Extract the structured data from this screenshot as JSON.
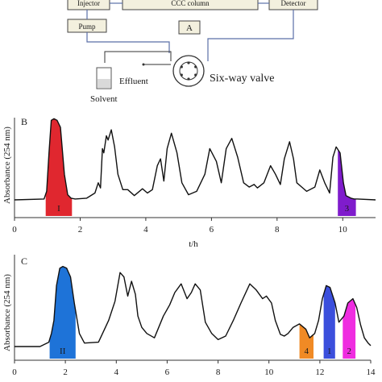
{
  "schematic": {
    "injector_label": "Injector",
    "column_label": "CCC column",
    "detector_label": "Detector",
    "pump_label": "Pump",
    "panel_label": "A",
    "effluent_label": "Effluent",
    "solvent_label": "Solvent",
    "valve_label": "Six-way valve"
  },
  "chart_data": [
    {
      "type": "line",
      "panel": "B",
      "xlabel": "t/h",
      "ylabel": "Absorbance (254 nm)",
      "xlim": [
        0,
        11
      ],
      "ylim": [
        0,
        1
      ],
      "xticks": [
        "0",
        "2",
        "4",
        "6",
        "8",
        "10"
      ],
      "series": [
        {
          "x": [
            0.0,
            0.9,
            0.98,
            1.05,
            1.12,
            1.2,
            1.3,
            1.4,
            1.52,
            1.62,
            1.72,
            1.85,
            2.2,
            2.45,
            2.55,
            2.62,
            2.68,
            2.72,
            2.8,
            2.85,
            2.95,
            3.05,
            3.15,
            3.3,
            3.45,
            3.65,
            3.9,
            4.05,
            4.2,
            4.35,
            4.45,
            4.55,
            4.65,
            4.78,
            4.95,
            5.1,
            5.3,
            5.55,
            5.8,
            5.95,
            6.15,
            6.3,
            6.45,
            6.62,
            6.8,
            6.98,
            7.15,
            7.3,
            7.4,
            7.6,
            7.8,
            7.95,
            8.1,
            8.22,
            8.38,
            8.5,
            8.6,
            8.75,
            8.9,
            9.15,
            9.3,
            9.45,
            9.6,
            9.7,
            9.8,
            9.92,
            10.02,
            10.1,
            10.25,
            10.35,
            10.45,
            11.0
          ],
          "y": [
            0.0,
            0.01,
            0.1,
            0.55,
            0.93,
            0.95,
            0.93,
            0.85,
            0.3,
            0.06,
            0.02,
            0.01,
            0.02,
            0.08,
            0.2,
            0.14,
            0.6,
            0.55,
            0.75,
            0.7,
            0.82,
            0.62,
            0.3,
            0.12,
            0.12,
            0.05,
            0.13,
            0.08,
            0.12,
            0.4,
            0.48,
            0.22,
            0.6,
            0.78,
            0.55,
            0.2,
            0.06,
            0.1,
            0.3,
            0.6,
            0.45,
            0.2,
            0.6,
            0.72,
            0.5,
            0.2,
            0.15,
            0.18,
            0.14,
            0.2,
            0.4,
            0.3,
            0.18,
            0.48,
            0.68,
            0.48,
            0.2,
            0.15,
            0.1,
            0.15,
            0.35,
            0.2,
            0.08,
            0.5,
            0.62,
            0.55,
            0.2,
            0.05,
            0.02,
            0.01,
            0.01,
            0.0
          ]
        }
      ],
      "fractions": [
        {
          "label": "I",
          "x_start": 0.95,
          "x_end": 1.75,
          "color": "#e0272f"
        },
        {
          "label": "3",
          "x_start": 9.85,
          "x_end": 10.4,
          "color": "#7f1ccc"
        }
      ]
    },
    {
      "type": "line",
      "panel": "C",
      "ylabel": "Absorbance (254 nm)",
      "xlim": [
        0,
        14
      ],
      "ylim": [
        0,
        1
      ],
      "xticks": [
        "0",
        "2",
        "4",
        "6",
        "8",
        "10",
        "12",
        "14"
      ],
      "series": [
        {
          "x": [
            0.0,
            1.0,
            1.35,
            1.45,
            1.55,
            1.65,
            1.78,
            1.9,
            2.05,
            2.2,
            2.35,
            2.55,
            2.75,
            3.3,
            3.7,
            3.95,
            4.15,
            4.3,
            4.45,
            4.6,
            4.75,
            4.85,
            5.0,
            5.2,
            5.5,
            5.85,
            6.1,
            6.3,
            6.55,
            6.78,
            6.95,
            7.1,
            7.3,
            7.5,
            7.75,
            8.0,
            8.3,
            8.6,
            8.9,
            9.25,
            9.5,
            9.75,
            9.9,
            10.1,
            10.25,
            10.45,
            10.6,
            10.75,
            10.95,
            11.2,
            11.45,
            11.6,
            11.8,
            11.95,
            12.1,
            12.25,
            12.4,
            12.6,
            12.75,
            12.95,
            13.1,
            13.3,
            13.45,
            13.6,
            13.75,
            13.9,
            14.0
          ],
          "y": [
            0.0,
            0.0,
            0.05,
            0.15,
            0.3,
            0.7,
            0.9,
            0.92,
            0.9,
            0.8,
            0.5,
            0.15,
            0.04,
            0.05,
            0.3,
            0.52,
            0.85,
            0.8,
            0.58,
            0.75,
            0.6,
            0.35,
            0.22,
            0.15,
            0.1,
            0.35,
            0.48,
            0.62,
            0.72,
            0.55,
            0.62,
            0.72,
            0.65,
            0.28,
            0.15,
            0.08,
            0.12,
            0.3,
            0.5,
            0.72,
            0.65,
            0.55,
            0.58,
            0.5,
            0.3,
            0.14,
            0.12,
            0.15,
            0.22,
            0.26,
            0.2,
            0.1,
            0.15,
            0.3,
            0.55,
            0.7,
            0.68,
            0.5,
            0.28,
            0.35,
            0.5,
            0.55,
            0.45,
            0.25,
            0.1,
            0.04,
            0.01
          ]
        }
      ],
      "fractions": [
        {
          "label": "II",
          "x_start": 1.38,
          "x_end": 2.4,
          "color": "#1e73d8"
        },
        {
          "label": "4",
          "x_start": 11.2,
          "x_end": 11.75,
          "color": "#f08a25"
        },
        {
          "label": "1",
          "x_start": 12.15,
          "x_end": 12.6,
          "color": "#3b4fdc"
        },
        {
          "label": "2",
          "x_start": 12.9,
          "x_end": 13.4,
          "color": "#ef2de0"
        }
      ]
    }
  ]
}
